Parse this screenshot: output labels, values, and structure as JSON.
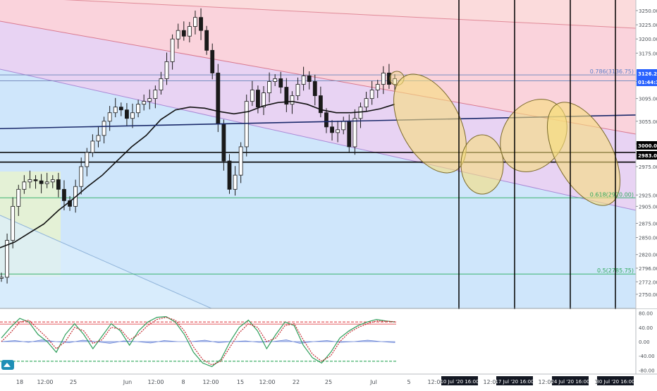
{
  "chart_data": {
    "type": "line",
    "instrument_note": "candlestick price chart with Fibonacci channel, moving averages, ellipse annotations and stochastic oscillator",
    "price_axis": {
      "ylim": [
        2740,
        3260
      ],
      "ticks": [
        3250,
        3225,
        3200,
        3175,
        3125,
        3095,
        3055,
        3015,
        2975,
        2925,
        2905,
        2875,
        2850,
        2820,
        2796,
        2772,
        2750
      ]
    },
    "price_badges": [
      {
        "value": "3126.25",
        "color": "#2962ff"
      },
      {
        "value": "01:44:39",
        "color": "#2962ff"
      },
      {
        "value": "3000.00",
        "color": "#000000"
      },
      {
        "value": "2983.00",
        "color": "#000000"
      }
    ],
    "fib_labels": [
      {
        "text": "0.786(3136.75)",
        "price": 3136.75,
        "color": "#5b7ec8"
      },
      {
        "text": "0.618(2920.00)",
        "price": 2920.0,
        "color": "#2ea85a"
      },
      {
        "text": "0.5(2785.75)",
        "price": 2785.75,
        "color": "#2ea85a"
      }
    ],
    "horizontal_lines": [
      {
        "price": 3136.75,
        "color": "#7a8fc0"
      },
      {
        "price": 3126.25,
        "color": "#7a8fc0"
      },
      {
        "price": 3000,
        "color": "#000000"
      },
      {
        "price": 2983,
        "color": "#000000"
      },
      {
        "price": 2920,
        "color": "#3cb371"
      },
      {
        "price": 2785.75,
        "color": "#3cb371"
      }
    ],
    "x_axis": {
      "ticks": [
        "18",
        "12:00",
        "25",
        "Jun",
        "12:00",
        "8",
        "12:00",
        "15",
        "12:00",
        "22",
        "25",
        "Jul",
        "5",
        "12:00",
        "12:00",
        "12:00",
        "12:00"
      ],
      "cycle_labels": [
        "10 Jul '20  16:00",
        "17 Jul '20  16:00",
        "24 Jul '20  16:00",
        "30 Jul '20  16:00"
      ]
    },
    "close_series": [
      2780,
      2845,
      2905,
      2935,
      2948,
      2952,
      2950,
      2945,
      2948,
      2952,
      2935,
      2915,
      2905,
      2940,
      2975,
      3000,
      3020,
      3030,
      3055,
      3070,
      3080,
      3075,
      3060,
      3070,
      3085,
      3090,
      3095,
      3110,
      3130,
      3160,
      3200,
      3215,
      3205,
      3222,
      3238,
      3215,
      3180,
      3140,
      3050,
      2985,
      2935,
      2960,
      3010,
      3090,
      3110,
      3080,
      3105,
      3125,
      3130,
      3115,
      3085,
      3100,
      3120,
      3135,
      3125,
      3100,
      3070,
      3045,
      3035,
      3040,
      3055,
      3010,
      3060,
      3080,
      3095,
      3110,
      3120,
      3140,
      3120,
      3130
    ],
    "moving_averages": [
      {
        "name": "",
        "color": "#111111",
        "values": [
          2832,
          2842,
          2858,
          2874,
          2898,
          2918,
          2940,
          2960,
          2985,
          3010,
          3030,
          3058,
          3075,
          3080,
          3078,
          3072,
          3068,
          3072,
          3082,
          3088,
          3090,
          3085,
          3075,
          3070,
          3070,
          3072,
          3077,
          3085
        ]
      },
      {
        "name": "",
        "color": "#1b2a6b",
        "values": [
          3042,
          3066
        ]
      }
    ],
    "oscillator": {
      "ylim": [
        -85,
        85
      ],
      "ticks": [
        80,
        40,
        0,
        -40,
        -80
      ],
      "overbought": 55,
      "oversold": -55,
      "k_values": [
        10,
        40,
        65,
        55,
        20,
        0,
        -30,
        20,
        50,
        20,
        -20,
        15,
        50,
        30,
        -10,
        30,
        55,
        68,
        70,
        55,
        20,
        -30,
        -60,
        -70,
        -50,
        0,
        40,
        60,
        30,
        -20,
        20,
        55,
        45,
        -10,
        -45,
        -60,
        -30,
        10,
        30,
        45,
        55,
        62,
        58,
        55
      ],
      "d_values": [
        0,
        25,
        55,
        60,
        35,
        10,
        -20,
        0,
        40,
        30,
        -5,
        5,
        40,
        35,
        5,
        20,
        45,
        62,
        68,
        60,
        30,
        -15,
        -50,
        -65,
        -55,
        -15,
        25,
        50,
        40,
        0,
        10,
        45,
        50,
        5,
        -35,
        -55,
        -40,
        0,
        25,
        40,
        50,
        58,
        57,
        56
      ],
      "signal_values": [
        0,
        3,
        -2,
        5,
        0,
        -3,
        4,
        0,
        -5,
        2,
        0,
        -4,
        3,
        0,
        0,
        4,
        -3,
        0,
        2,
        -2,
        0,
        5,
        -5,
        0,
        3,
        -2,
        0,
        4,
        0,
        -3
      ]
    }
  }
}
